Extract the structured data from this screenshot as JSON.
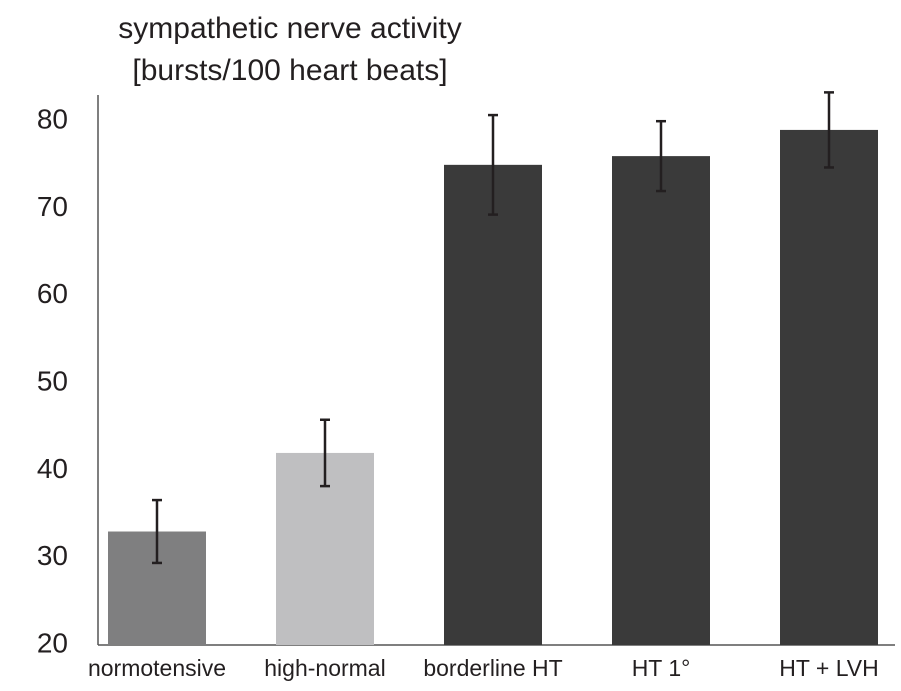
{
  "chart_data": {
    "type": "bar",
    "title": [
      "sympathetic nerve activity",
      "[bursts/100 heart beats]"
    ],
    "categories": [
      "normotensive",
      "high-normal",
      "borderline HT",
      "HT 1°",
      "HT + LVH"
    ],
    "values": [
      33,
      42,
      75,
      76,
      79
    ],
    "errors": [
      3.6,
      3.8,
      5.7,
      4,
      4.3
    ],
    "colors": [
      "#7f7f80",
      "#bfbfc1",
      "#3a3a3a",
      "#3a3a3a",
      "#3a3a3a"
    ],
    "ylim": [
      20,
      83
    ],
    "yticks": [
      20,
      30,
      40,
      50,
      60,
      70,
      80
    ],
    "grid": false
  }
}
